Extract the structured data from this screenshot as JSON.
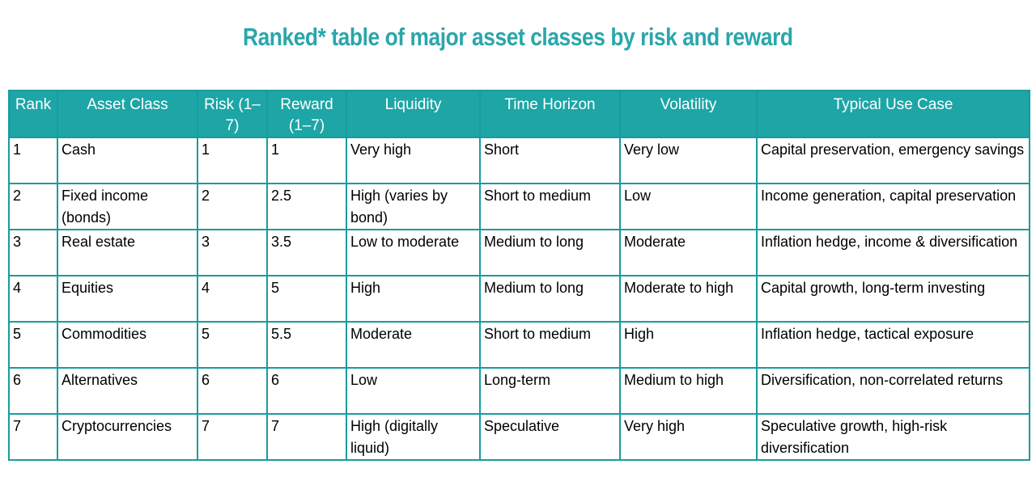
{
  "page": {
    "title": "Ranked* table of major asset classes by risk and reward"
  },
  "colors": {
    "title_teal": "#2aa6ab",
    "header_background_teal": "#1ea5a6",
    "border_teal": "#189c9e",
    "header_text": "#ffffff",
    "body_text": "#000000",
    "page_background": "#ffffff"
  },
  "table": {
    "columns": [
      {
        "label": "Rank"
      },
      {
        "label": "Asset Class"
      },
      {
        "label": "Risk (1–7)"
      },
      {
        "label": "Reward (1–7)"
      },
      {
        "label": "Liquidity"
      },
      {
        "label": "Time Horizon"
      },
      {
        "label": "Volatility"
      },
      {
        "label": "Typical Use Case"
      }
    ],
    "rows": [
      [
        "1",
        "Cash",
        "1",
        "1",
        "Very high",
        "Short",
        "Very low",
        "Capital preservation, emergency savings"
      ],
      [
        "2",
        "Fixed income (bonds)",
        "2",
        "2.5",
        "High (varies by bond)",
        "Short to medium",
        "Low",
        "Income generation, capital preservation"
      ],
      [
        "3",
        "Real estate",
        "3",
        "3.5",
        "Low to moderate",
        "Medium to long",
        "Moderate",
        "Inflation hedge, income & diversification"
      ],
      [
        "4",
        "Equities",
        "4",
        "5",
        "High",
        "Medium to long",
        "Moderate to high",
        "Capital growth, long-term investing"
      ],
      [
        "5",
        "Commodities",
        "5",
        "5.5",
        "Moderate",
        "Short to medium",
        "High",
        "Inflation hedge, tactical exposure"
      ],
      [
        "6",
        "Alternatives",
        "6",
        "6",
        "Low",
        "Long-term",
        "Medium to high",
        "Diversification, non-correlated returns"
      ],
      [
        "7",
        "Cryptocurrencies",
        "7",
        "7",
        "High (digitally liquid)",
        "Speculative",
        "Very high",
        "Speculative growth, high-risk diversification"
      ]
    ]
  }
}
